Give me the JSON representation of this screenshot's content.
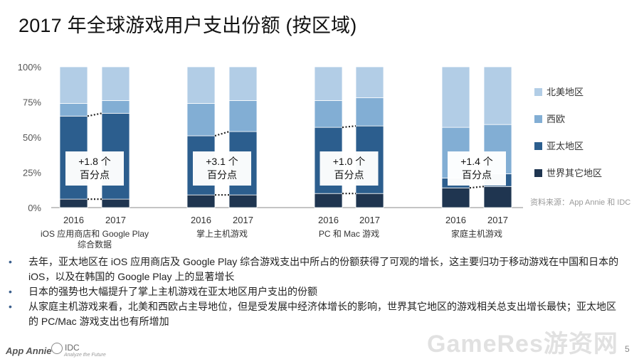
{
  "title": "2017 年全球游戏用户支出份额 (按区域)",
  "chart_data": {
    "type": "bar",
    "stacked": true,
    "y_unit": "%",
    "ylim": [
      0,
      100
    ],
    "yticks": [
      "0%",
      "25%",
      "50%",
      "75%",
      "100%"
    ],
    "series_order": [
      "世界其它地区",
      "亚太地区",
      "西欧",
      "北美地区"
    ],
    "colors": {
      "世界其它地区": "#1f3550",
      "亚太地区": "#2c5e8e",
      "西欧": "#82aed4",
      "北美地区": "#b2cde6"
    },
    "groups": [
      {
        "label": "iOS 应用商店和 Google Play 综合数据",
        "label_lines": [
          "iOS 应用商店和 Google Play",
          "综合数据"
        ],
        "bars": [
          {
            "year": "2016",
            "values": {
              "世界其它地区": 6,
              "亚太地区": 59,
              "西欧": 9,
              "北美地区": 26
            }
          },
          {
            "year": "2017",
            "values": {
              "世界其它地区": 6,
              "亚太地区": 61,
              "西欧": 9,
              "北美地区": 24
            }
          }
        ],
        "annotation": [
          "+1.8 个",
          "百分点"
        ]
      },
      {
        "label": "掌上主机游戏",
        "label_lines": [
          "掌上主机游戏"
        ],
        "bars": [
          {
            "year": "2016",
            "values": {
              "世界其它地区": 9,
              "亚太地区": 42,
              "西欧": 23,
              "北美地区": 26
            }
          },
          {
            "year": "2017",
            "values": {
              "世界其它地区": 9,
              "亚太地区": 45,
              "西欧": 22,
              "北美地区": 24
            }
          }
        ],
        "annotation": [
          "+3.1 个",
          "百分点"
        ]
      },
      {
        "label": "PC 和 Mac 游戏",
        "label_lines": [
          "PC 和 Mac 游戏"
        ],
        "bars": [
          {
            "year": "2016",
            "values": {
              "世界其它地区": 10,
              "亚太地区": 47,
              "西欧": 19,
              "北美地区": 24
            }
          },
          {
            "year": "2017",
            "values": {
              "世界其它地区": 10,
              "亚太地区": 48,
              "西欧": 20,
              "北美地区": 22
            }
          }
        ],
        "annotation": [
          "+1.0 个",
          "百分点"
        ]
      },
      {
        "label": "家庭主机游戏",
        "label_lines": [
          "家庭主机游戏"
        ],
        "bars": [
          {
            "year": "2016",
            "values": {
              "世界其它地区": 14,
              "亚太地区": 7,
              "西欧": 36,
              "北美地区": 43
            }
          },
          {
            "year": "2017",
            "values": {
              "世界其它地区": 15,
              "亚太地区": 9,
              "西欧": 35,
              "北美地区": 41
            }
          }
        ],
        "annotation": [
          "+1.4 个",
          "百分点"
        ]
      }
    ],
    "legend": [
      "北美地区",
      "西欧",
      "亚太地区",
      "世界其它地区"
    ],
    "legend_position": "right"
  },
  "source": "资料来源：App Annie 和 IDC",
  "bullets": [
    "去年，亚太地区在 iOS 应用商店及 Google Play 综合游戏支出中所占的份额获得了可观的增长，这主要归功于移动游戏在中国和日本的 iOS，以及在韩国的 Google Play 上的显著增长",
    "日本的强势也大幅提升了掌上主机游戏在亚太地区用户支出的份额",
    "从家庭主机游戏来看，北美和西欧占主导地位，但是受发展中经济体增长的影响，世界其它地区的游戏相关总支出增长最快；亚太地区的 PC/Mac 游戏支出也有所增加"
  ],
  "bullet_marker": "•",
  "footer": {
    "logo_left": "App Annie",
    "logo_right": "IDC",
    "logo_right_sub": "Analyze the Future",
    "watermark": "GameRes游资网",
    "page_number": "5"
  }
}
